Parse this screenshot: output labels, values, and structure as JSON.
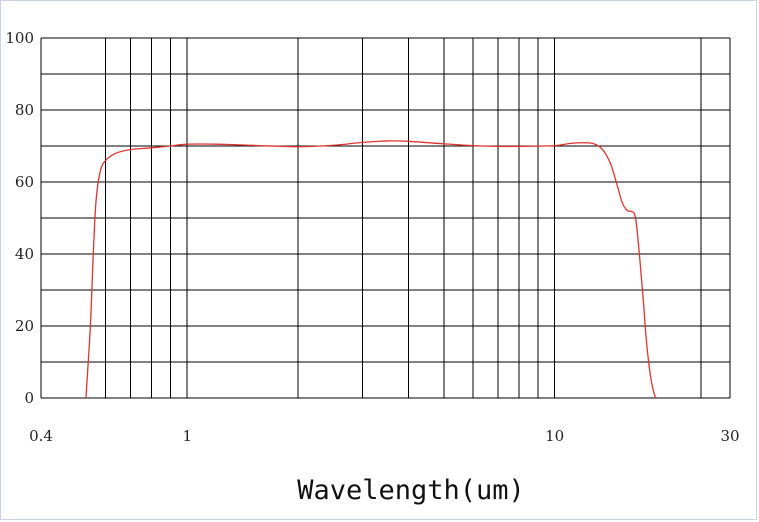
{
  "chart_data": {
    "type": "line",
    "xlabel": "Wavelength(um)",
    "ylabel": "",
    "title": "",
    "x_scale": "log",
    "xlim": [
      0.4,
      30
    ],
    "ylim": [
      0,
      100
    ],
    "grid": true,
    "x_tick_labels": [
      "0.4",
      "1",
      "10",
      "30"
    ],
    "x_ticks": [
      0.4,
      1,
      10,
      30
    ],
    "x_gridlines": [
      0.6,
      0.7,
      0.8,
      0.9,
      1,
      2,
      3,
      4,
      5,
      6,
      7,
      8,
      9,
      10,
      25
    ],
    "y_ticks": [
      0,
      20,
      40,
      60,
      80,
      100
    ],
    "y_tick_labels": [
      "0",
      "20",
      "40",
      "60",
      "80",
      "100"
    ],
    "y_gridlines": [
      10,
      20,
      30,
      40,
      50,
      60,
      70,
      80,
      90,
      100
    ],
    "colors": {
      "curve": "#e0332f",
      "grid": "#000000"
    },
    "series": [
      {
        "color": "#e0332f",
        "x": [
          0.53,
          0.545,
          0.555,
          0.565,
          0.58,
          0.6,
          0.64,
          0.7,
          0.8,
          0.9,
          1.0,
          1.2,
          1.5,
          2.0,
          2.5,
          3.0,
          3.5,
          4.0,
          5.0,
          6.0,
          7.0,
          8.0,
          10.0,
          11.0,
          12.0,
          12.8,
          13.5,
          14.2,
          14.8,
          15.3,
          15.8,
          16.2,
          16.6,
          17.0,
          17.4,
          17.8,
          18.3,
          18.8
        ],
        "y": [
          0,
          20,
          40,
          55,
          63,
          66,
          68,
          69,
          69.5,
          70,
          70.5,
          70.5,
          70.2,
          69.8,
          70.2,
          71,
          71.4,
          71.3,
          70.6,
          70.1,
          69.9,
          69.9,
          70.1,
          70.7,
          70.9,
          70.6,
          69,
          65,
          59,
          54,
          52,
          51.8,
          50,
          40,
          28,
          15,
          5,
          0
        ]
      }
    ]
  }
}
